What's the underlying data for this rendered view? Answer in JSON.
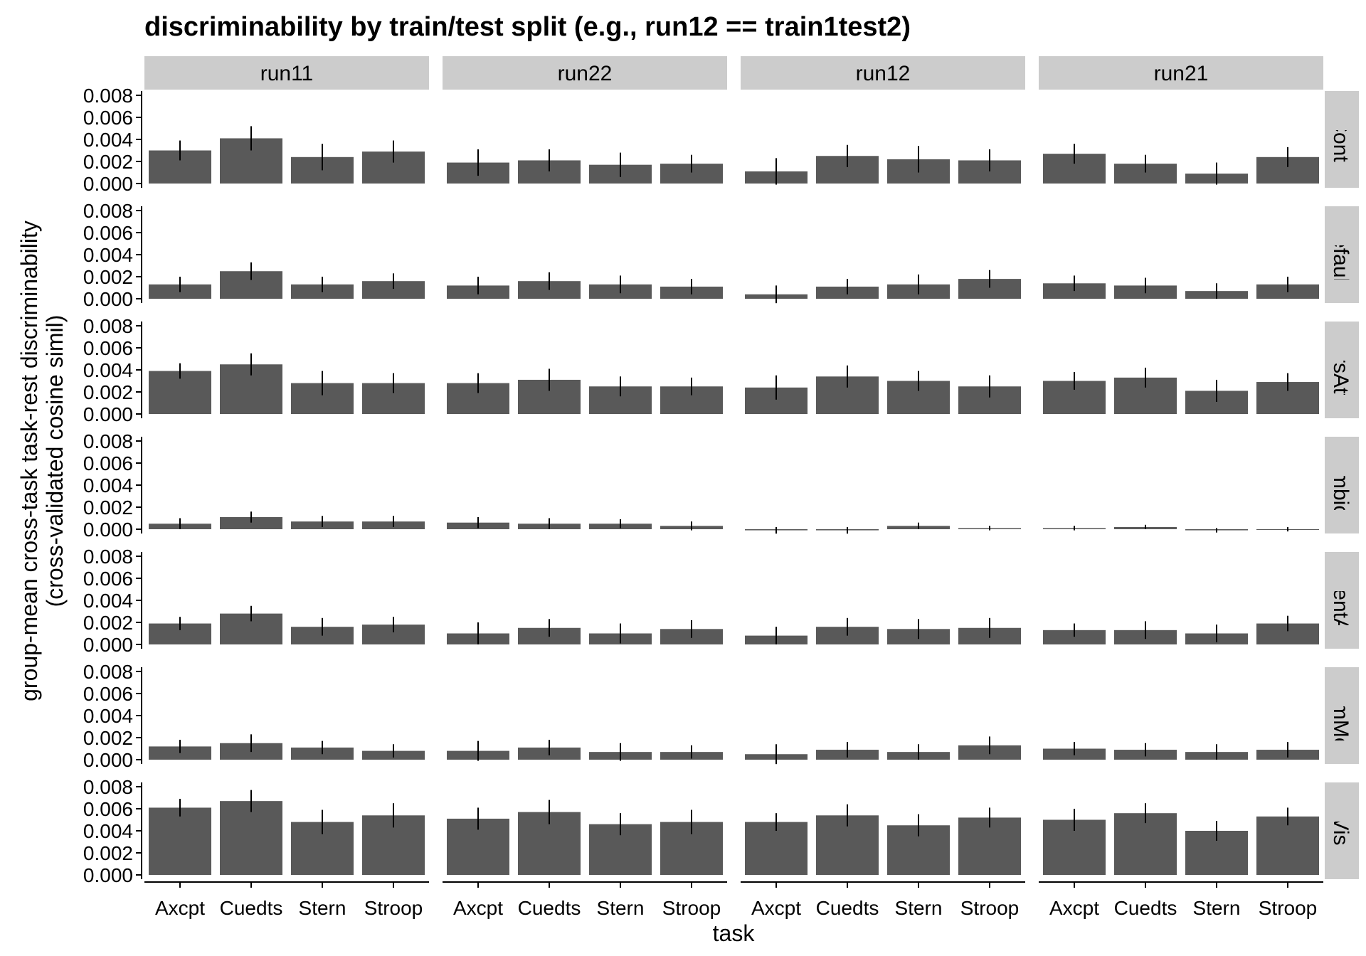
{
  "chart_data": {
    "type": "bar",
    "title": "discriminability by train/test split (e.g., run12 == train1test2)",
    "xlabel": "task",
    "ylabel": [
      "group-mean cross-task task-rest discriminability",
      "(cross-validated cosine simil)"
    ],
    "ylim": [
      0,
      0.008
    ],
    "yticks": [
      "0.000",
      "0.002",
      "0.004",
      "0.006",
      "0.008"
    ],
    "categories": [
      "Axcpt",
      "Cuedts",
      "Stern",
      "Stroop"
    ],
    "columns": [
      "run11",
      "run22",
      "run12",
      "run21"
    ],
    "rows": [
      "Cont",
      "Default",
      "DorsAttn",
      "Limbic",
      "SalVentAttn",
      "SomMot",
      "Vis"
    ],
    "grid": false,
    "colors": {
      "bar": "#595959",
      "strip": "#cccccc",
      "errorbar": "#000000"
    },
    "panels": {
      "Cont": {
        "run11": {
          "values": [
            0.003,
            0.0041,
            0.0024,
            0.0029
          ],
          "err": [
            0.0009,
            0.0011,
            0.0012,
            0.001
          ]
        },
        "run22": {
          "values": [
            0.0019,
            0.0021,
            0.0017,
            0.0018
          ],
          "err": [
            0.0012,
            0.001,
            0.0011,
            0.0008
          ]
        },
        "run12": {
          "values": [
            0.0011,
            0.0025,
            0.0022,
            0.0021
          ],
          "err": [
            0.0012,
            0.001,
            0.0012,
            0.001
          ]
        },
        "run21": {
          "values": [
            0.0027,
            0.0018,
            0.0009,
            0.0024
          ],
          "err": [
            0.0009,
            0.0008,
            0.001,
            0.0009
          ]
        }
      },
      "Default": {
        "run11": {
          "values": [
            0.0013,
            0.0025,
            0.0013,
            0.0016
          ],
          "err": [
            0.0007,
            0.0008,
            0.0007,
            0.0007
          ]
        },
        "run22": {
          "values": [
            0.0012,
            0.0016,
            0.0013,
            0.0011
          ],
          "err": [
            0.0008,
            0.0008,
            0.0008,
            0.0007
          ]
        },
        "run12": {
          "values": [
            0.0004,
            0.0011,
            0.0013,
            0.0018
          ],
          "err": [
            0.0008,
            0.0007,
            0.0009,
            0.0008
          ]
        },
        "run21": {
          "values": [
            0.0014,
            0.0012,
            0.0007,
            0.0013
          ],
          "err": [
            0.0007,
            0.0007,
            0.0007,
            0.0007
          ]
        }
      },
      "DorsAttn": {
        "run11": {
          "values": [
            0.0039,
            0.0045,
            0.0028,
            0.0028
          ],
          "err": [
            0.0007,
            0.001,
            0.0011,
            0.0009
          ]
        },
        "run22": {
          "values": [
            0.0028,
            0.0031,
            0.0025,
            0.0025
          ],
          "err": [
            0.0009,
            0.001,
            0.0009,
            0.0008
          ]
        },
        "run12": {
          "values": [
            0.0024,
            0.0034,
            0.003,
            0.0025
          ],
          "err": [
            0.0011,
            0.001,
            0.0009,
            0.001
          ]
        },
        "run21": {
          "values": [
            0.003,
            0.0033,
            0.0021,
            0.0029
          ],
          "err": [
            0.0008,
            0.0009,
            0.001,
            0.0008
          ]
        }
      },
      "Limbic": {
        "run11": {
          "values": [
            0.0005,
            0.0011,
            0.0007,
            0.0007
          ],
          "err": [
            0.0005,
            0.0005,
            0.0005,
            0.0005
          ]
        },
        "run22": {
          "values": [
            0.0006,
            0.0005,
            0.0005,
            0.0003
          ],
          "err": [
            0.0005,
            0.0005,
            0.0004,
            0.0004
          ]
        },
        "run12": {
          "values": [
            -0.0001,
            -0.0001,
            0.0003,
            0.0001
          ],
          "err": [
            0.0003,
            0.0003,
            0.0003,
            0.0002
          ]
        },
        "run21": {
          "values": [
            0.0001,
            0.0002,
            -0.0001,
            0.0
          ],
          "err": [
            0.0002,
            0.0002,
            0.0002,
            0.0002
          ]
        }
      },
      "SalVentAttn": {
        "run11": {
          "values": [
            0.0019,
            0.0028,
            0.0016,
            0.0018
          ],
          "err": [
            0.0006,
            0.0007,
            0.0008,
            0.0007
          ]
        },
        "run22": {
          "values": [
            0.001,
            0.0015,
            0.001,
            0.0014
          ],
          "err": [
            0.001,
            0.0008,
            0.0009,
            0.0008
          ]
        },
        "run12": {
          "values": [
            0.0008,
            0.0016,
            0.0014,
            0.0015
          ],
          "err": [
            0.0008,
            0.0008,
            0.0009,
            0.0009
          ]
        },
        "run21": {
          "values": [
            0.0013,
            0.0013,
            0.001,
            0.0019
          ],
          "err": [
            0.0006,
            0.0008,
            0.0008,
            0.0007
          ]
        }
      },
      "SomMot": {
        "run11": {
          "values": [
            0.0012,
            0.0015,
            0.0011,
            0.0008
          ],
          "err": [
            0.0006,
            0.0008,
            0.0006,
            0.0006
          ]
        },
        "run22": {
          "values": [
            0.0008,
            0.0011,
            0.0007,
            0.0007
          ],
          "err": [
            0.0009,
            0.0007,
            0.0008,
            0.0006
          ]
        },
        "run12": {
          "values": [
            0.0005,
            0.0009,
            0.0007,
            0.0013
          ],
          "err": [
            0.0009,
            0.0007,
            0.0007,
            0.0008
          ]
        },
        "run21": {
          "values": [
            0.001,
            0.0009,
            0.0007,
            0.0009
          ],
          "err": [
            0.0006,
            0.0006,
            0.0007,
            0.0007
          ]
        }
      },
      "Vis": {
        "run11": {
          "values": [
            0.0061,
            0.0067,
            0.0048,
            0.0054
          ],
          "err": [
            0.0008,
            0.001,
            0.0011,
            0.0011
          ]
        },
        "run22": {
          "values": [
            0.0051,
            0.0057,
            0.0046,
            0.0048
          ],
          "err": [
            0.001,
            0.0011,
            0.001,
            0.0011
          ]
        },
        "run12": {
          "values": [
            0.0048,
            0.0054,
            0.0045,
            0.0052
          ],
          "err": [
            0.0008,
            0.001,
            0.001,
            0.0009
          ]
        },
        "run21": {
          "values": [
            0.005,
            0.0056,
            0.004,
            0.0053
          ],
          "err": [
            0.001,
            0.0009,
            0.0009,
            0.0008
          ]
        }
      }
    }
  }
}
